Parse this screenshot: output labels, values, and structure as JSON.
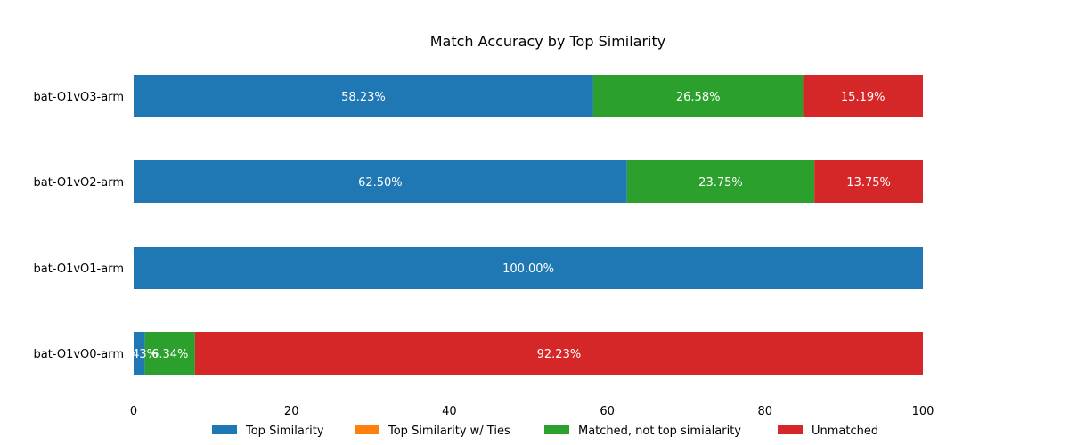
{
  "chart_data": {
    "type": "bar",
    "orientation": "horizontal",
    "stacked": true,
    "title": "Match Accuracy by Top Similarity",
    "xlabel": "",
    "ylabel": "",
    "xlim": [
      0,
      100
    ],
    "xticks": [
      0,
      20,
      40,
      60,
      80,
      100
    ],
    "xtick_labels": [
      "0",
      "20",
      "40",
      "60",
      "80",
      "100"
    ],
    "grid": false,
    "legend_position": "bottom-center",
    "categories": [
      "bat-O1vO0-arm",
      "bat-O1vO1-arm",
      "bat-O1vO2-arm",
      "bat-O1vO3-arm"
    ],
    "series": [
      {
        "name": "Top Similarity",
        "color": "#1f77b4",
        "values": [
          1.43,
          100.0,
          62.5,
          58.23
        ],
        "labels": [
          "1.43%",
          "100.00%",
          "62.50%",
          "58.23%"
        ]
      },
      {
        "name": "Top Similarity w/ Ties",
        "color": "#ff7f0e",
        "values": [
          0,
          0,
          0,
          0
        ],
        "labels": [
          "",
          "",
          "",
          ""
        ]
      },
      {
        "name": "Matched, not top simialarity",
        "color": "#2ca02c",
        "values": [
          6.34,
          0,
          23.75,
          26.58
        ],
        "labels": [
          "6.34%",
          "",
          "23.75%",
          "26.58%"
        ]
      },
      {
        "name": "Unmatched",
        "color": "#d62728",
        "values": [
          92.23,
          0,
          13.75,
          15.19
        ],
        "labels": [
          "92.23%",
          "",
          "13.75%",
          "15.19%"
        ]
      }
    ]
  }
}
